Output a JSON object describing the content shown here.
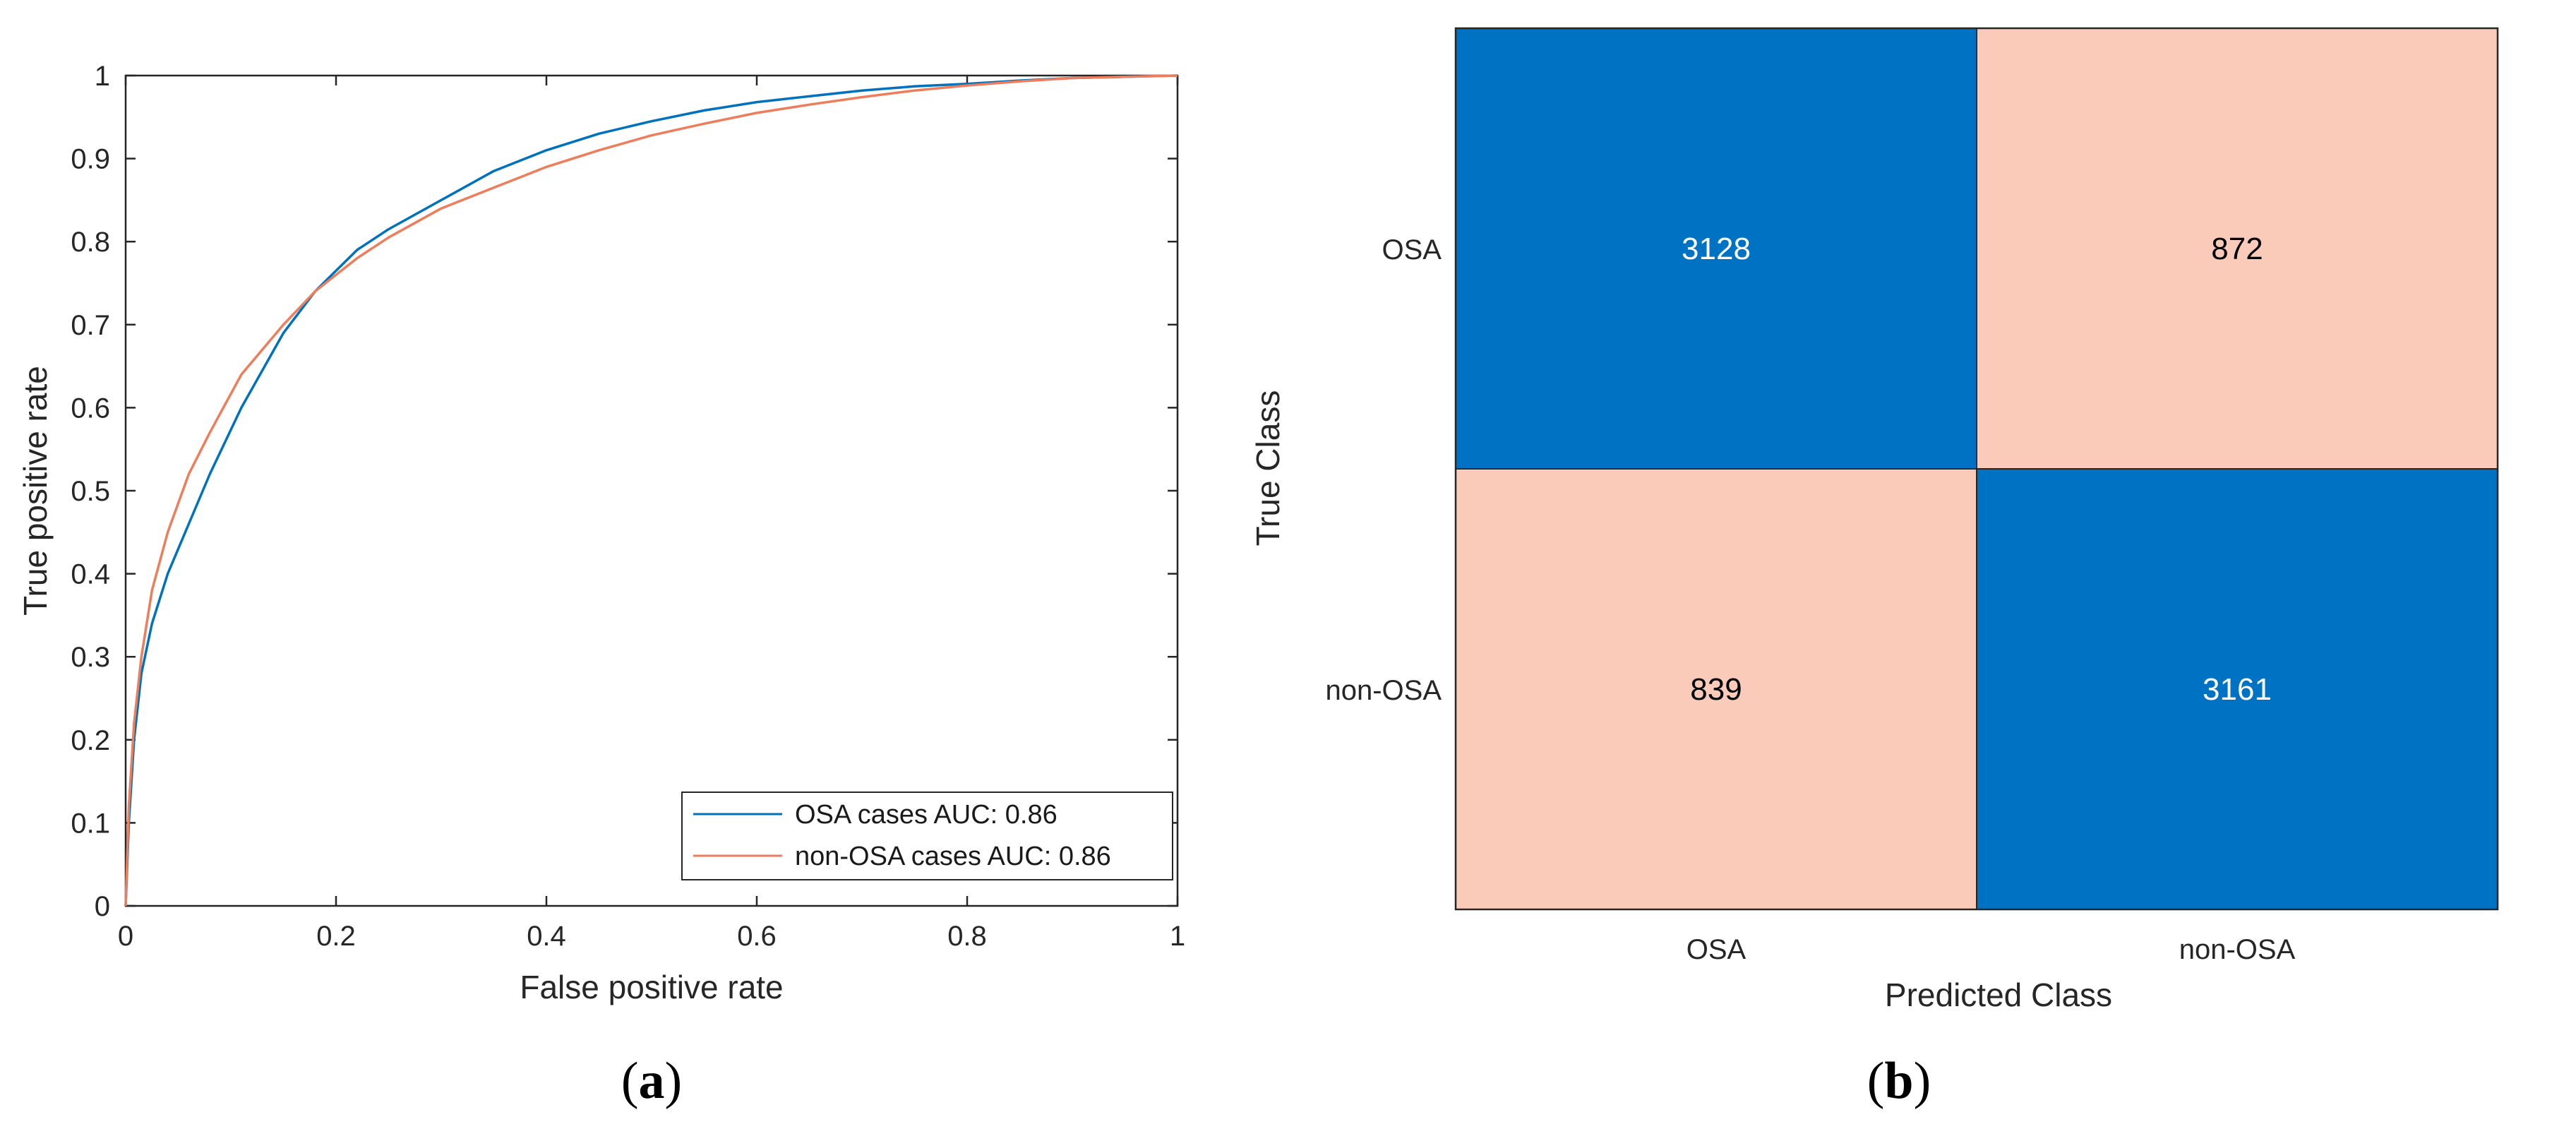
{
  "chart_data": [
    {
      "type": "line",
      "panel_label": "a",
      "title": "",
      "xlabel": "False positive rate",
      "ylabel": "True positive rate",
      "xlim": [
        0,
        1
      ],
      "ylim": [
        0,
        1
      ],
      "xticks": [
        "0",
        "0.2",
        "0.4",
        "0.6",
        "0.8",
        "1"
      ],
      "yticks": [
        "0",
        "0.1",
        "0.2",
        "0.3",
        "0.4",
        "0.5",
        "0.6",
        "0.7",
        "0.8",
        "0.9",
        "1"
      ],
      "grid": false,
      "legend_position": "bottom-right",
      "series": [
        {
          "name": "OSA cases AUC: 0.86",
          "color": "#0072BD",
          "points": [
            [
              0,
              0
            ],
            [
              0.003,
              0.1
            ],
            [
              0.008,
              0.2
            ],
            [
              0.015,
              0.28
            ],
            [
              0.025,
              0.34
            ],
            [
              0.04,
              0.4
            ],
            [
              0.06,
              0.46
            ],
            [
              0.08,
              0.52
            ],
            [
              0.11,
              0.6
            ],
            [
              0.15,
              0.69
            ],
            [
              0.18,
              0.74
            ],
            [
              0.22,
              0.79
            ],
            [
              0.25,
              0.815
            ],
            [
              0.3,
              0.85
            ],
            [
              0.35,
              0.885
            ],
            [
              0.4,
              0.91
            ],
            [
              0.45,
              0.93
            ],
            [
              0.5,
              0.945
            ],
            [
              0.55,
              0.958
            ],
            [
              0.6,
              0.968
            ],
            [
              0.65,
              0.975
            ],
            [
              0.7,
              0.982
            ],
            [
              0.75,
              0.987
            ],
            [
              0.8,
              0.99
            ],
            [
              0.85,
              0.994
            ],
            [
              0.9,
              0.997
            ],
            [
              1,
              1
            ]
          ]
        },
        {
          "name": "non-OSA cases AUC: 0.86",
          "color": "#EE7D5C",
          "points": [
            [
              0,
              0
            ],
            [
              0.003,
              0.12
            ],
            [
              0.008,
              0.22
            ],
            [
              0.015,
              0.3
            ],
            [
              0.025,
              0.38
            ],
            [
              0.04,
              0.45
            ],
            [
              0.06,
              0.52
            ],
            [
              0.08,
              0.57
            ],
            [
              0.11,
              0.64
            ],
            [
              0.15,
              0.7
            ],
            [
              0.18,
              0.74
            ],
            [
              0.22,
              0.78
            ],
            [
              0.25,
              0.805
            ],
            [
              0.3,
              0.84
            ],
            [
              0.35,
              0.865
            ],
            [
              0.4,
              0.89
            ],
            [
              0.45,
              0.91
            ],
            [
              0.5,
              0.928
            ],
            [
              0.55,
              0.942
            ],
            [
              0.6,
              0.955
            ],
            [
              0.65,
              0.965
            ],
            [
              0.7,
              0.974
            ],
            [
              0.75,
              0.982
            ],
            [
              0.8,
              0.988
            ],
            [
              0.85,
              0.993
            ],
            [
              0.9,
              0.997
            ],
            [
              1,
              1
            ]
          ]
        }
      ]
    },
    {
      "type": "heatmap",
      "panel_label": "b",
      "xlabel": "Predicted Class",
      "ylabel": "True Class",
      "row_labels": [
        "OSA",
        "non-OSA"
      ],
      "col_labels": [
        "OSA",
        "non-OSA"
      ],
      "values": [
        [
          3128,
          872
        ],
        [
          839,
          3161
        ]
      ],
      "correct_color": "#0072C3",
      "incorrect_color": "#FACBB9",
      "correct_text_color": "#ffffff",
      "incorrect_text_color": "#000000"
    }
  ]
}
